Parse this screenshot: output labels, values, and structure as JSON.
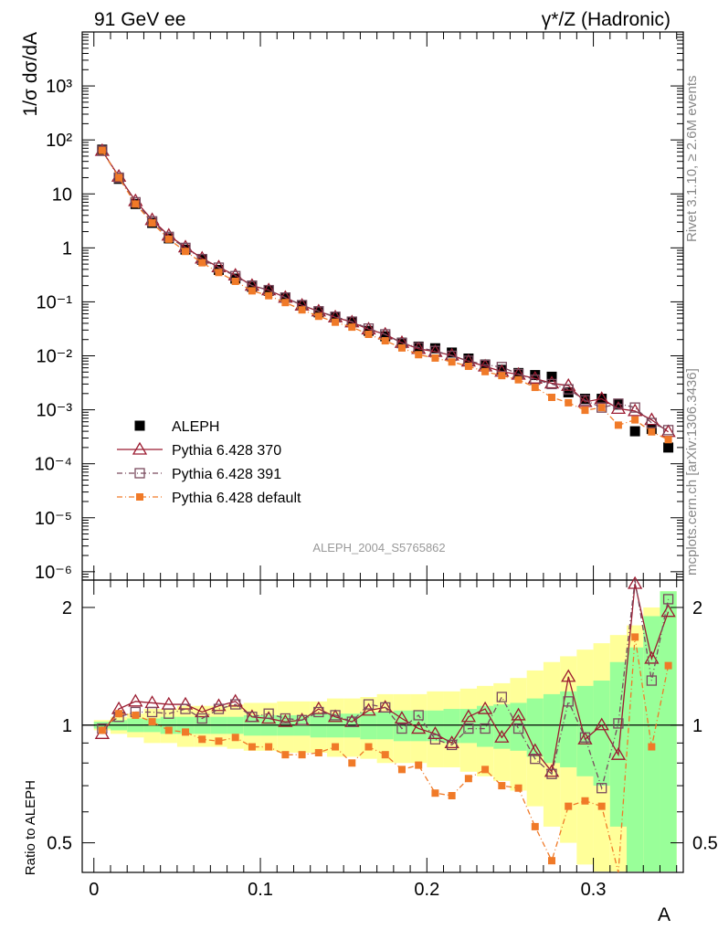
{
  "header": {
    "left_title": "91 GeV ee",
    "right_title": "γ*/Z (Hadronic)"
  },
  "side_labels": {
    "rivet": "Rivet 3.1.10, ≥ 2.6M events",
    "mcplots": "mcplots.cern.ch [arXiv:1306.3436]"
  },
  "analysis_id": "ALEPH_2004_S5765862",
  "colors": {
    "aleph": "#000000",
    "p370": "#9b1b30",
    "p391": "#7a4a5e",
    "pdef": "#f07a28",
    "band_inner": "#99ff99",
    "band_outer": "#ffff99"
  },
  "chart_data": [
    {
      "type": "scatter",
      "panel": "main",
      "title": "",
      "xlabel": "A",
      "ylabel": "1/σ dσ/dA",
      "yscale": "log",
      "xlim": [
        -0.007,
        0.354
      ],
      "ylim": [
        7e-07,
        10000
      ],
      "x": [
        0.005,
        0.015,
        0.025,
        0.035,
        0.045,
        0.055,
        0.065,
        0.075,
        0.085,
        0.095,
        0.105,
        0.115,
        0.125,
        0.135,
        0.145,
        0.155,
        0.165,
        0.175,
        0.185,
        0.195,
        0.205,
        0.215,
        0.225,
        0.235,
        0.245,
        0.255,
        0.265,
        0.275,
        0.285,
        0.295,
        0.305,
        0.315,
        0.325,
        0.335,
        0.345
      ],
      "y_tick_labels": [
        "10⁻⁶",
        "10⁻⁵",
        "10⁻⁴",
        "10⁻³",
        "10⁻²",
        "10⁻¹",
        "1",
        "10",
        "10²",
        "10³"
      ],
      "x_tick_labels": [
        "0",
        "0.1",
        "0.2",
        "0.3"
      ],
      "series": [
        {
          "name": "ALEPH",
          "style": "square-filled",
          "values": [
            66,
            19,
            6.5,
            2.9,
            1.5,
            0.93,
            0.6,
            0.39,
            0.27,
            0.19,
            0.16,
            0.12,
            0.087,
            0.064,
            0.052,
            0.043,
            0.029,
            0.023,
            0.0175,
            0.0148,
            0.0138,
            0.0115,
            0.0089,
            0.0069,
            0.0055,
            0.0048,
            0.0044,
            0.0041,
            0.0021,
            0.0016,
            0.0016,
            0.00125,
            0.0004,
            0.00044,
            0.0002
          ]
        },
        {
          "name": "Pythia 6.428 370",
          "style": "triangle-open-solid-line",
          "values": [
            63,
            21,
            7.4,
            3.3,
            1.7,
            1.03,
            0.64,
            0.44,
            0.31,
            0.2,
            0.165,
            0.12,
            0.086,
            0.067,
            0.052,
            0.042,
            0.031,
            0.025,
            0.0175,
            0.0135,
            0.0119,
            0.0102,
            0.0079,
            0.0064,
            0.0051,
            0.0045,
            0.0038,
            0.0031,
            0.0028,
            0.0014,
            0.0016,
            0.00105,
            0.00095,
            0.00065,
            0.00039
          ]
        },
        {
          "name": "Pythia 6.428 391",
          "style": "square-open-dashdot",
          "values": [
            63,
            20,
            7.0,
            3.1,
            1.6,
            1.0,
            0.62,
            0.43,
            0.3,
            0.2,
            0.165,
            0.12,
            0.087,
            0.067,
            0.053,
            0.043,
            0.032,
            0.025,
            0.0172,
            0.0143,
            0.0123,
            0.01,
            0.0081,
            0.0068,
            0.0062,
            0.0046,
            0.0036,
            0.003,
            0.0024,
            0.0015,
            0.0011,
            0.0013,
            0.0011,
            0.00057,
            0.00042
          ]
        },
        {
          "name": "Pythia 6.428 default",
          "style": "square-filled-dashdot",
          "values": [
            64,
            20,
            6.5,
            2.9,
            1.45,
            0.86,
            0.53,
            0.35,
            0.24,
            0.16,
            0.13,
            0.097,
            0.071,
            0.054,
            0.042,
            0.034,
            0.025,
            0.019,
            0.014,
            0.0105,
            0.0091,
            0.0077,
            0.0064,
            0.0051,
            0.0043,
            0.0036,
            0.0026,
            0.0017,
            0.00135,
            0.00098,
            0.0011,
            0.00052,
            0.00065,
            0.00039,
            0.00028
          ]
        }
      ]
    },
    {
      "type": "scatter",
      "panel": "ratio",
      "xlabel": "A",
      "ylabel": "Ratio to ALEPH",
      "yscale": "log",
      "xlim": [
        -0.007,
        0.354
      ],
      "ylim": [
        0.42,
        2.35
      ],
      "y_tick_labels": [
        "0.5",
        "1",
        "2"
      ],
      "x_tick_labels": [
        "0",
        "0.1",
        "0.2",
        "0.3"
      ],
      "x": [
        0.005,
        0.015,
        0.025,
        0.035,
        0.045,
        0.055,
        0.065,
        0.075,
        0.085,
        0.095,
        0.105,
        0.115,
        0.125,
        0.135,
        0.145,
        0.155,
        0.165,
        0.175,
        0.185,
        0.195,
        0.205,
        0.215,
        0.225,
        0.235,
        0.245,
        0.255,
        0.265,
        0.275,
        0.285,
        0.295,
        0.305,
        0.315,
        0.325,
        0.335,
        0.345
      ],
      "band_inner_halfwidth": [
        0.02,
        0.03,
        0.04,
        0.04,
        0.05,
        0.05,
        0.05,
        0.05,
        0.05,
        0.06,
        0.06,
        0.06,
        0.06,
        0.07,
        0.07,
        0.07,
        0.08,
        0.08,
        0.09,
        0.09,
        0.09,
        0.1,
        0.1,
        0.12,
        0.13,
        0.14,
        0.17,
        0.2,
        0.22,
        0.26,
        0.3,
        0.45,
        0.58,
        0.9,
        1.2
      ],
      "band_outer_halfwidth": [
        0.03,
        0.05,
        0.07,
        0.1,
        0.1,
        0.12,
        0.12,
        0.12,
        0.13,
        0.14,
        0.14,
        0.15,
        0.15,
        0.15,
        0.17,
        0.17,
        0.18,
        0.2,
        0.2,
        0.2,
        0.22,
        0.22,
        0.24,
        0.26,
        0.28,
        0.32,
        0.38,
        0.45,
        0.5,
        0.56,
        0.62,
        0.7,
        0.8,
        1.0,
        1.2
      ],
      "series": [
        {
          "name": "Pythia 6.428 370",
          "style": "triangle-open-solid-line",
          "values": [
            0.95,
            1.1,
            1.15,
            1.14,
            1.13,
            1.13,
            1.08,
            1.12,
            1.15,
            1.05,
            1.04,
            1.02,
            1.03,
            1.1,
            1.05,
            1.02,
            1.09,
            1.11,
            1.04,
            0.98,
            0.95,
            0.9,
            1.05,
            1.1,
            0.93,
            1.06,
            0.86,
            0.76,
            1.33,
            0.92,
            1.0,
            0.84,
            2.3,
            1.48,
            1.95
          ]
        },
        {
          "name": "Pythia 6.428 391",
          "style": "square-open-dashdot",
          "values": [
            0.98,
            1.05,
            1.08,
            1.08,
            1.07,
            1.1,
            1.04,
            1.1,
            1.13,
            1.05,
            1.07,
            1.04,
            1.03,
            1.08,
            1.06,
            1.02,
            1.13,
            1.11,
            0.98,
            1.06,
            0.92,
            0.89,
            0.98,
            0.98,
            1.18,
            0.98,
            0.82,
            0.75,
            1.15,
            0.93,
            0.69,
            1.01,
            2.4,
            1.3,
            2.1
          ]
        },
        {
          "name": "Pythia 6.428 default",
          "style": "square-filled-dashdot",
          "values": [
            0.97,
            1.07,
            1.06,
            1.02,
            0.97,
            0.96,
            0.92,
            0.91,
            0.93,
            0.88,
            0.88,
            0.84,
            0.84,
            0.85,
            0.88,
            0.8,
            0.88,
            0.84,
            0.77,
            0.79,
            0.67,
            0.66,
            0.73,
            0.77,
            0.7,
            0.69,
            0.55,
            0.45,
            0.62,
            0.64,
            0.62,
            0.41,
            1.68,
            0.88,
            1.42
          ]
        }
      ]
    }
  ]
}
